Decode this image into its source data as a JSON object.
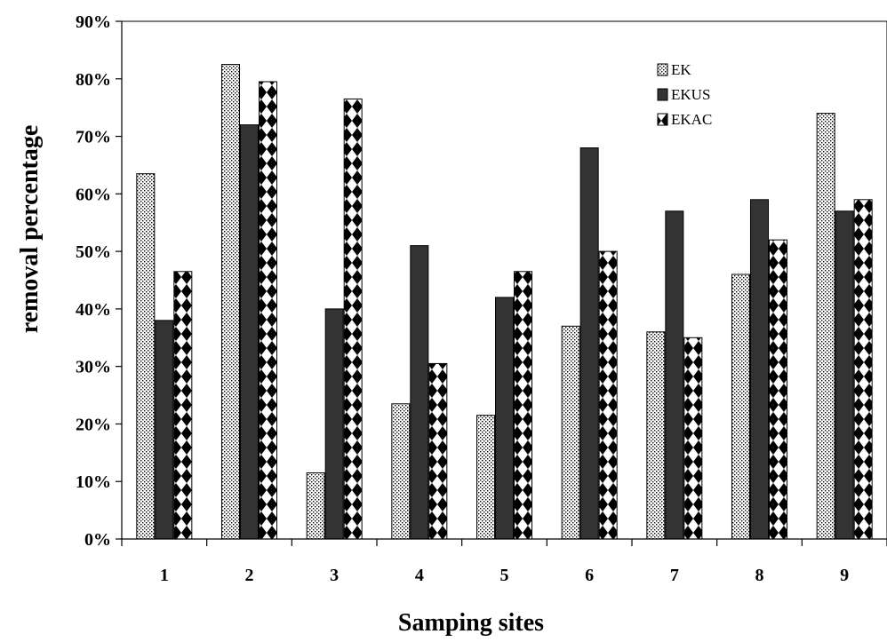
{
  "chart_data": {
    "type": "bar",
    "title": "",
    "xlabel": "Samping sites",
    "ylabel": "removal percentage",
    "categories": [
      "1",
      "2",
      "3",
      "4",
      "5",
      "6",
      "7",
      "8",
      "9"
    ],
    "y_ticks": [
      "0%",
      "10%",
      "20%",
      "30%",
      "40%",
      "50%",
      "60%",
      "70%",
      "80%",
      "90%"
    ],
    "ylim": [
      0,
      90
    ],
    "grid": false,
    "legend_position": "top-right",
    "series": [
      {
        "name": "EK",
        "pattern": "dotted",
        "values": [
          63.5,
          82.5,
          11.5,
          23.5,
          21.5,
          37,
          36,
          46,
          74
        ]
      },
      {
        "name": "EKUS",
        "pattern": "solid-dark",
        "values": [
          38,
          72,
          40,
          51,
          42,
          68,
          57,
          59,
          57
        ]
      },
      {
        "name": "EKAC",
        "pattern": "diamond-checker",
        "values": [
          46.5,
          79.5,
          76.5,
          30.5,
          46.5,
          50,
          35,
          52,
          59
        ]
      }
    ],
    "colors": {
      "dark_bar": "#333333",
      "axis": "#000000",
      "background": "#ffffff"
    }
  }
}
